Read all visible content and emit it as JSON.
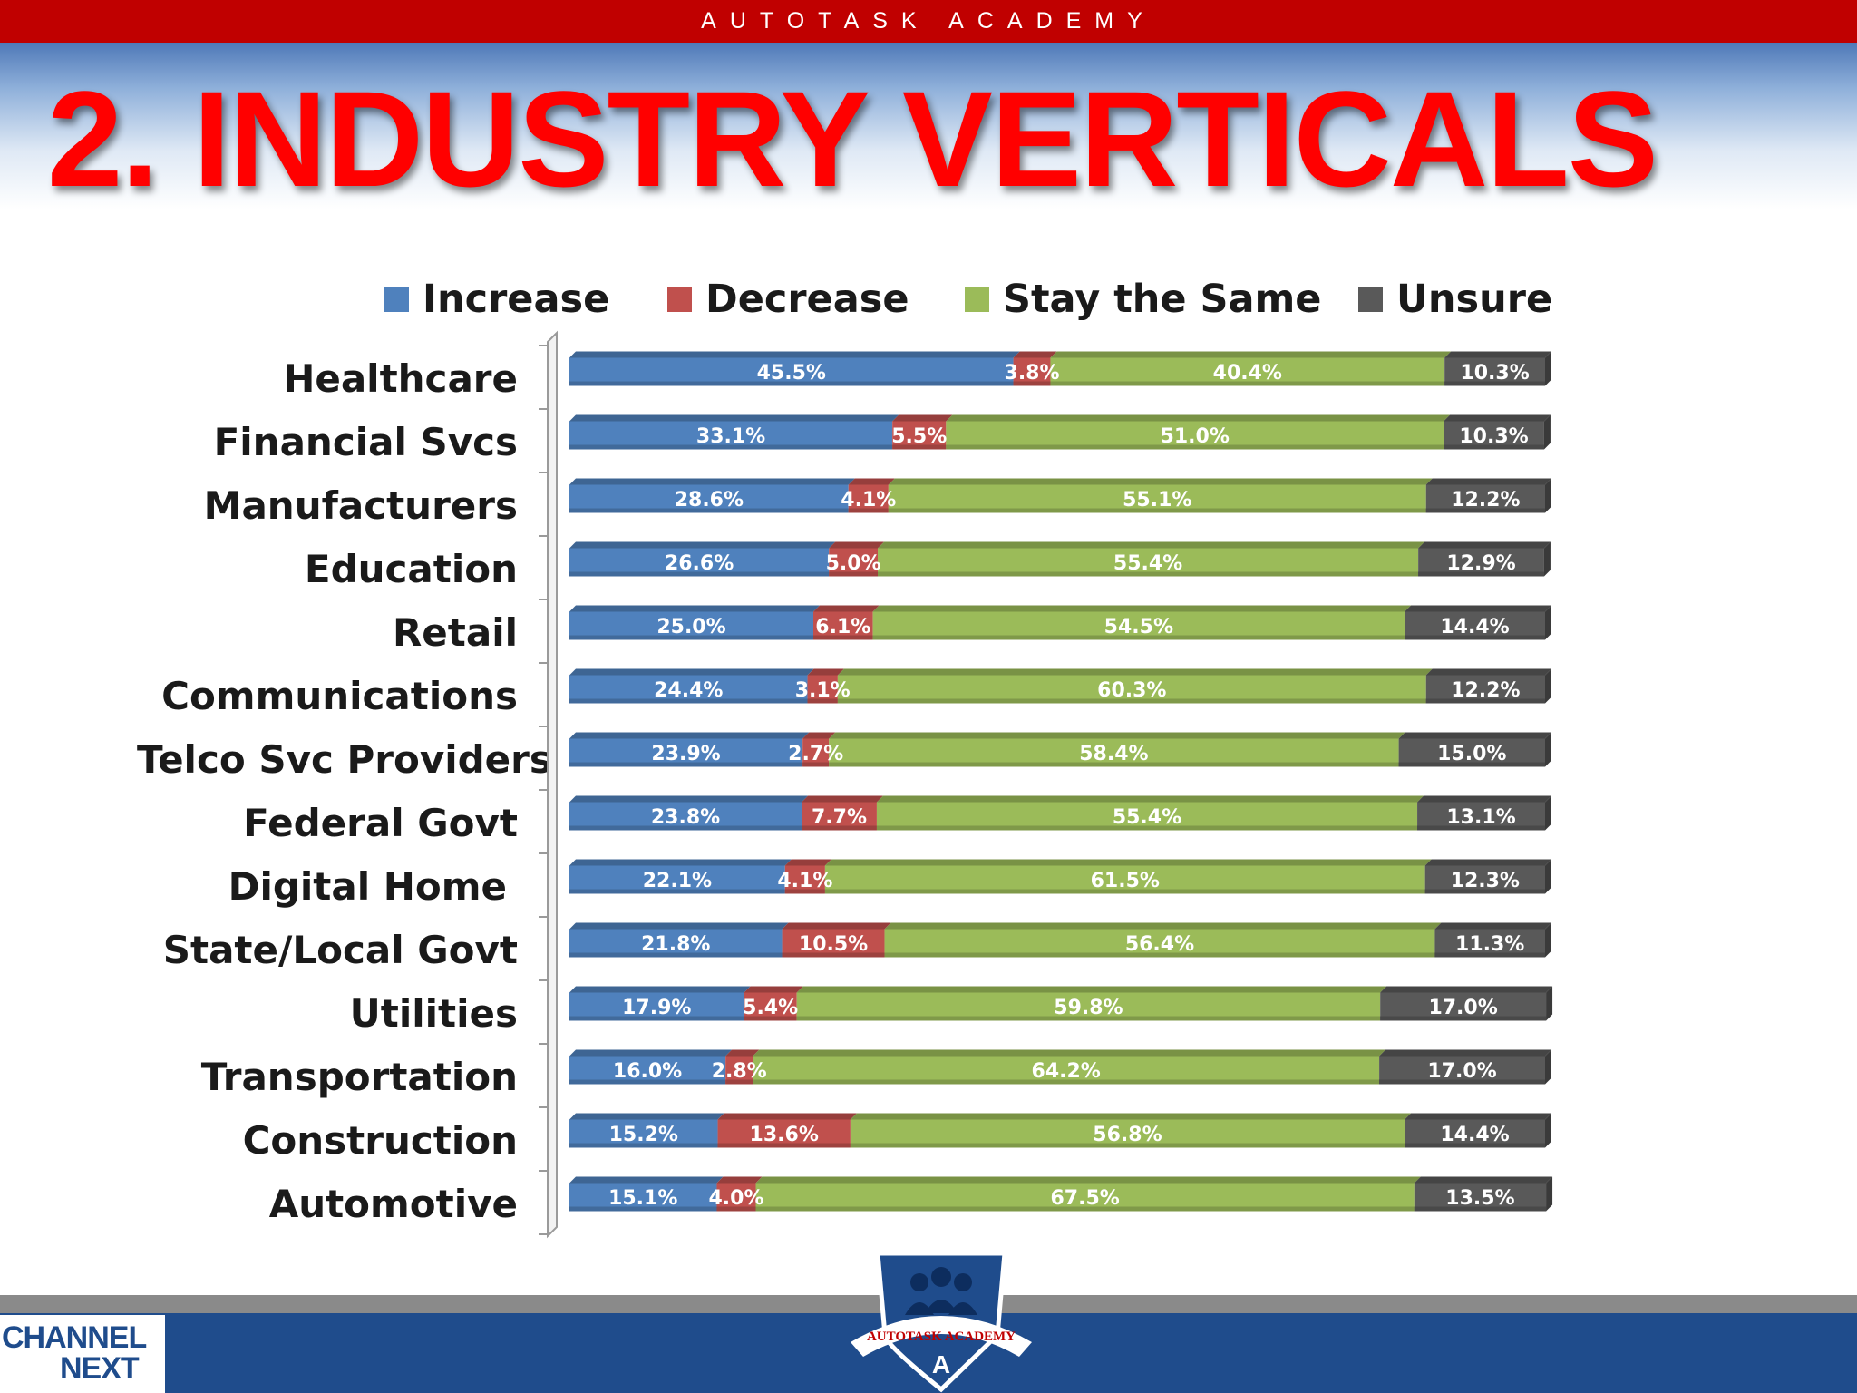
{
  "header": {
    "brand": "AUTOTASK ACADEMY",
    "title": "2. INDUSTRY VERTICALS"
  },
  "legend": [
    {
      "label": "Increase",
      "color": "#4f81bd"
    },
    {
      "label": "Decrease",
      "color": "#c0504d"
    },
    {
      "label": "Stay the Same",
      "color": "#9bbb59"
    },
    {
      "label": "Unsure",
      "color": "#595959"
    }
  ],
  "chart_data": {
    "type": "bar",
    "orientation": "horizontal",
    "stacked": true,
    "title": "",
    "xlabel": "",
    "ylabel": "",
    "xlim": [
      0,
      100
    ],
    "legend_position": "top",
    "grid": false,
    "categories": [
      "Healthcare",
      "Financial Svcs",
      "Manufacturers",
      "Education",
      "Retail",
      "Communications",
      "Telco Svc Providers",
      "Federal Govt",
      "Digital Home",
      "State/Local Govt",
      "Utilities",
      "Transportation",
      "Construction",
      "Automotive"
    ],
    "series": [
      {
        "name": "Increase",
        "color": "#4f81bd",
        "values": [
          45.5,
          33.1,
          28.6,
          26.6,
          25.0,
          24.4,
          23.9,
          23.8,
          22.1,
          21.8,
          17.9,
          16.0,
          15.2,
          15.1
        ]
      },
      {
        "name": "Decrease",
        "color": "#c0504d",
        "values": [
          3.8,
          5.5,
          4.1,
          5.0,
          6.1,
          3.1,
          2.7,
          7.7,
          4.1,
          10.5,
          5.4,
          2.8,
          13.6,
          4.0
        ]
      },
      {
        "name": "Stay the Same",
        "color": "#9bbb59",
        "values": [
          40.4,
          51.0,
          55.1,
          55.4,
          54.5,
          60.3,
          58.4,
          55.4,
          61.5,
          56.4,
          59.8,
          64.2,
          56.8,
          67.5
        ]
      },
      {
        "name": "Unsure",
        "color": "#595959",
        "values": [
          10.3,
          10.3,
          12.2,
          12.9,
          14.4,
          12.2,
          15.0,
          13.1,
          12.3,
          11.3,
          17.0,
          17.0,
          14.4,
          13.5
        ]
      }
    ],
    "data_labels": [
      [
        "45.5%",
        "3.8%",
        "40.4%",
        "10.3%"
      ],
      [
        "33.1%",
        "5.5%",
        "51.0%",
        "10.3%"
      ],
      [
        "28.6%",
        "4.1%",
        "55.1%",
        "12.2%"
      ],
      [
        "26.6%",
        "5.0%",
        "55.4%",
        "12.9%"
      ],
      [
        "25.0%",
        "6.1%",
        "54.5%",
        "14.4%"
      ],
      [
        "24.4%",
        "3.1%",
        "60.3%",
        "12.2%"
      ],
      [
        "23.9%",
        "2.7%",
        "58.4%",
        "15.0%"
      ],
      [
        "23.8%",
        "7.7%",
        "55.4%",
        "13.1%"
      ],
      [
        "22.1%",
        "4.1%",
        "61.5%",
        "12.3%"
      ],
      [
        "21.8%",
        "10.5%",
        "56.4%",
        "11.3%"
      ],
      [
        "17.9%",
        "5.4%",
        "59.8%",
        "17.0%"
      ],
      [
        "16.0%",
        "2.8%",
        "64.2%",
        "17.0%"
      ],
      [
        "15.2%",
        "13.6%",
        "56.8%",
        "14.4%"
      ],
      [
        "15.1%",
        "4.0%",
        "67.5%",
        "13.5%"
      ]
    ]
  },
  "footer": {
    "left_logo_line1": "CHANNEL",
    "left_logo_line2": "NEXT",
    "crest_text": "AUTOTASK ACADEMY",
    "crest_icon": "people-group-icon"
  }
}
